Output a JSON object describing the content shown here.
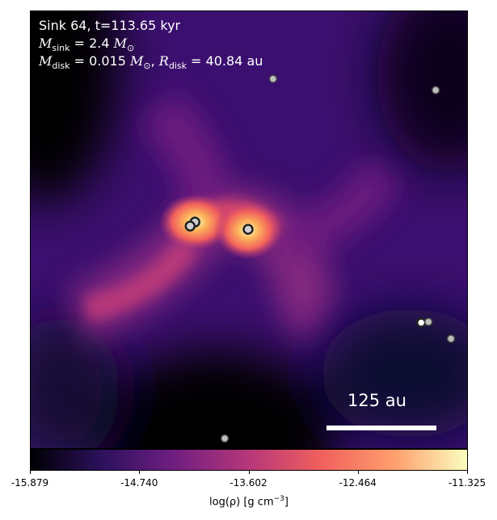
{
  "title_line1": "Sink 64, t=113.65 kyr",
  "mass_line": {
    "prefix": "M",
    "sub": "sink",
    "mid": " = 2.4 ",
    "unit": "M",
    "unit_sub": "⊙"
  },
  "disk_line": {
    "m_prefix": "M",
    "m_sub": "disk",
    "m_mid": " = 0.015 ",
    "m_unit": "M",
    "m_unit_sub": "⊙",
    "sep": ", ",
    "r_prefix": "R",
    "r_sub": "disk",
    "r_mid": " = 40.84 au"
  },
  "scale_bar_label": "125 au",
  "colorbar": {
    "ticks": [
      "-15.879",
      "-14.740",
      "-13.602",
      "-12.464",
      "-11.325"
    ],
    "label_pre": "log(ρ) [g cm",
    "label_sup": "−3",
    "label_post": "]",
    "colormap": [
      "#000004",
      "#2d115f",
      "#721f81",
      "#b73779",
      "#f1605d",
      "#fe9f6d",
      "#fcfdbf"
    ]
  }
}
